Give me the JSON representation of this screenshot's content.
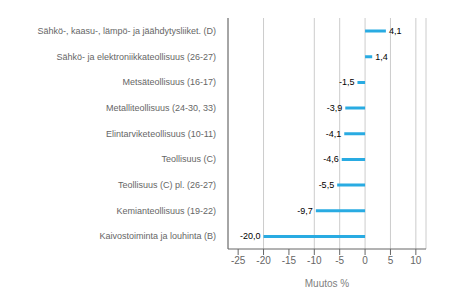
{
  "chart_data": {
    "type": "bar",
    "orientation": "horizontal",
    "categories": [
      "Kaivostoiminta  ja louhinta (B)",
      "Kemianteollisuus (19-22)",
      "Teollisuus (C) pl. (26-27)",
      "Teollisuus (C)",
      "Elintarviketeollisuus (10-11)",
      "Metalliteollisuus (24-30, 33)",
      "Metsäteollisuus (16-17)",
      "Sähkö- ja elektroniikkateollisuus (26-27)",
      "Sähkö-, kaasu-, lämpö- ja jäähdytysliiket. (D)"
    ],
    "values": [
      -20.0,
      -9.7,
      -5.5,
      -4.6,
      -4.1,
      -3.9,
      -1.5,
      1.4,
      4.1
    ],
    "value_labels": [
      "-20,0",
      "-9,7",
      "-5,5",
      "-4,6",
      "-4,1",
      "-3,9",
      "-1,5",
      "1,4",
      "4,1"
    ],
    "data_labels": true,
    "color": "#29abe2",
    "xlabel": "Muutos %",
    "xlim": [
      -27,
      12
    ],
    "xticks": [
      -25,
      -20,
      -15,
      -10,
      -5,
      0,
      5,
      10
    ],
    "grid": true
  }
}
